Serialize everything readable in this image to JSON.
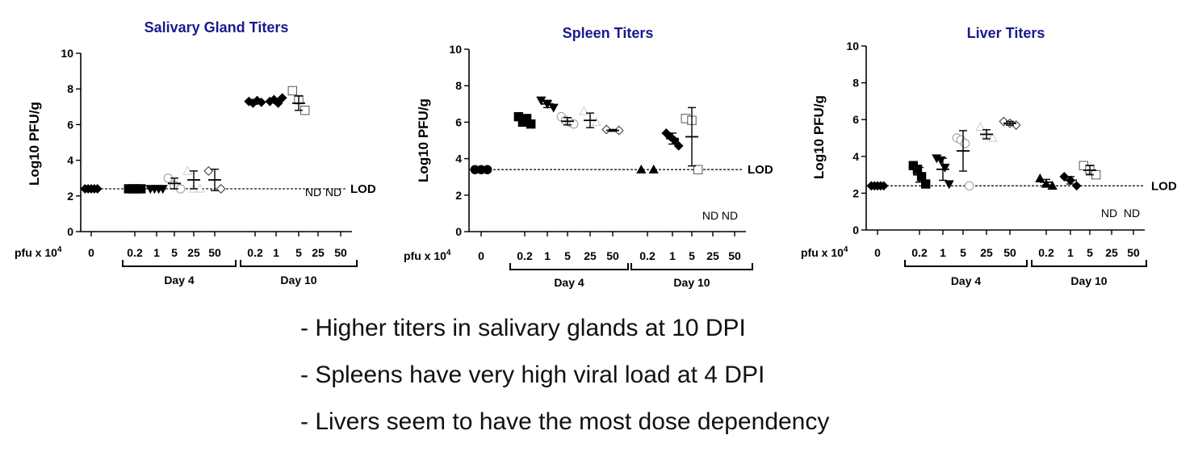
{
  "x_prefix": "pfu x 10",
  "x_prefix_exp": "4",
  "chart_data": [
    {
      "type": "scatter",
      "title": "Salivary Gland Titers",
      "ylabel": "Log10 PFU/g",
      "ylim": [
        0,
        10
      ],
      "yticks": [
        0,
        2,
        4,
        6,
        8,
        10
      ],
      "lod_value": 2.4,
      "lod_label": "LOD",
      "categories": [
        "0",
        "0.2",
        "1",
        "5",
        "25",
        "50",
        "0.2",
        "1",
        "5",
        "25",
        "50"
      ],
      "groups": [
        {
          "label": "Day 4",
          "from": 1,
          "to": 5
        },
        {
          "label": "Day 10",
          "from": 6,
          "to": 10
        }
      ],
      "not_detected": [
        {
          "category_index": 9,
          "text": "ND"
        },
        {
          "category_index": 10,
          "text": "ND"
        }
      ],
      "series": [
        {
          "category_index": 0,
          "marker": "diamond",
          "fill": "#000000",
          "values": [
            2.4,
            2.4,
            2.4,
            2.4,
            2.4
          ]
        },
        {
          "category_index": 1,
          "marker": "square",
          "fill": "#000000",
          "values": [
            2.4,
            2.4,
            2.4,
            2.4
          ]
        },
        {
          "category_index": 2,
          "marker": "triangle-down",
          "fill": "#000000",
          "values": [
            2.4,
            2.4,
            2.4,
            2.4
          ]
        },
        {
          "category_index": 3,
          "marker": "circle",
          "fill": "none",
          "color": "#999999",
          "values": [
            3.0,
            2.6,
            2.4
          ],
          "mean": 2.7,
          "err": 0.3
        },
        {
          "category_index": 4,
          "marker": "triangle",
          "fill": "none",
          "color": "#cccccc",
          "values": [
            3.4,
            2.4,
            2.4
          ],
          "mean": 2.9,
          "err": 0.5
        },
        {
          "category_index": 5,
          "marker": "diamond-open",
          "fill": "none",
          "color": "#333333",
          "values": [
            3.4,
            2.4
          ],
          "mean": 2.9,
          "err": 0.6
        },
        {
          "category_index": 6,
          "marker": "diamond",
          "fill": "#000000",
          "values": [
            7.3,
            7.2,
            7.35,
            7.25
          ],
          "mean": 7.3,
          "err": 0.1
        },
        {
          "category_index": 7,
          "marker": "diamond",
          "fill": "#000000",
          "values": [
            7.3,
            7.4,
            7.2,
            7.5
          ],
          "mean": 7.35,
          "err": 0.1
        },
        {
          "category_index": 8,
          "marker": "square",
          "fill": "none",
          "color": "#555555",
          "values": [
            7.9,
            7.4,
            6.8
          ],
          "mean": 7.2,
          "err": 0.4
        }
      ]
    },
    {
      "type": "scatter",
      "title": "Spleen Titers",
      "ylabel": "Log10 PFU/g",
      "ylim": [
        0,
        10
      ],
      "yticks": [
        0,
        2,
        4,
        6,
        8,
        10
      ],
      "lod_value": 3.4,
      "lod_label": "LOD",
      "categories": [
        "0",
        "0.2",
        "1",
        "5",
        "25",
        "50",
        "0.2",
        "1",
        "5",
        "25",
        "50"
      ],
      "groups": [
        {
          "label": "Day 4",
          "from": 1,
          "to": 5
        },
        {
          "label": "Day 10",
          "from": 6,
          "to": 10
        }
      ],
      "not_detected": [
        {
          "category_index": 9,
          "text": "ND"
        },
        {
          "category_index": 10,
          "text": "ND"
        }
      ],
      "series": [
        {
          "category_index": 0,
          "marker": "circle",
          "fill": "#000000",
          "values": [
            3.4,
            3.4,
            3.4
          ]
        },
        {
          "category_index": 1,
          "marker": "square",
          "fill": "#000000",
          "values": [
            6.3,
            6.0,
            6.2,
            5.9
          ],
          "mean": 6.1,
          "err": 0.15
        },
        {
          "category_index": 2,
          "marker": "triangle-down",
          "fill": "#000000",
          "values": [
            7.2,
            7.0,
            6.8
          ],
          "mean": 7.0,
          "err": 0.2
        },
        {
          "category_index": 3,
          "marker": "circle",
          "fill": "none",
          "color": "#999999",
          "values": [
            6.3,
            6.1,
            6.0,
            5.9
          ],
          "mean": 6.05,
          "err": 0.2
        },
        {
          "category_index": 4,
          "marker": "triangle",
          "fill": "none",
          "color": "#cccccc",
          "values": [
            6.6,
            6.0
          ],
          "mean": 6.1,
          "err": 0.4
        },
        {
          "category_index": 5,
          "marker": "diamond-open",
          "fill": "none",
          "color": "#333333",
          "values": [
            5.6,
            5.55
          ],
          "mean": 5.55,
          "err": 0.05
        },
        {
          "category_index": 6,
          "marker": "triangle",
          "fill": "#000000",
          "values": [
            3.4,
            3.4
          ]
        },
        {
          "category_index": 7,
          "marker": "diamond",
          "fill": "#000000",
          "values": [
            5.4,
            5.2,
            5.0,
            4.7
          ],
          "mean": 5.1,
          "err": 0.3
        },
        {
          "category_index": 8,
          "marker": "square",
          "fill": "none",
          "color": "#555555",
          "values": [
            6.2,
            6.1,
            3.4
          ],
          "mean": 5.2,
          "err": 1.6
        }
      ]
    },
    {
      "type": "scatter",
      "title": "Liver Titers",
      "ylabel": "Log10 PFU/g",
      "ylim": [
        0,
        10
      ],
      "yticks": [
        0,
        2,
        4,
        6,
        8,
        10
      ],
      "lod_value": 2.4,
      "lod_label": "LOD",
      "categories": [
        "0",
        "0.2",
        "1",
        "5",
        "25",
        "50",
        "0.2",
        "1",
        "5",
        "25",
        "50"
      ],
      "groups": [
        {
          "label": "Day 4",
          "from": 1,
          "to": 5
        },
        {
          "label": "Day 10",
          "from": 6,
          "to": 10
        }
      ],
      "not_detected": [
        {
          "category_index": 9,
          "text": "ND"
        },
        {
          "category_index": 10,
          "text": "ND"
        }
      ],
      "series": [
        {
          "category_index": 0,
          "marker": "diamond",
          "fill": "#000000",
          "values": [
            2.4,
            2.4,
            2.4,
            2.4,
            2.4
          ]
        },
        {
          "category_index": 1,
          "marker": "square",
          "fill": "#000000",
          "values": [
            3.5,
            3.3,
            2.9,
            2.5
          ],
          "mean": 3.0,
          "err": 0.4
        },
        {
          "category_index": 2,
          "marker": "triangle-down",
          "fill": "#000000",
          "values": [
            3.9,
            3.8,
            3.4,
            2.5
          ],
          "mean": 3.3,
          "err": 0.6
        },
        {
          "category_index": 3,
          "marker": "circle",
          "fill": "none",
          "color": "#999999",
          "values": [
            5.0,
            4.9,
            4.7,
            2.4
          ],
          "mean": 4.3,
          "err": 1.1
        },
        {
          "category_index": 4,
          "marker": "triangle",
          "fill": "none",
          "color": "#cccccc",
          "values": [
            5.6,
            5.2,
            5.0
          ],
          "mean": 5.2,
          "err": 0.25
        },
        {
          "category_index": 5,
          "marker": "diamond-open",
          "fill": "none",
          "color": "#333333",
          "values": [
            5.9,
            5.8,
            5.7
          ],
          "mean": 5.8,
          "err": 0.1
        },
        {
          "category_index": 6,
          "marker": "triangle",
          "fill": "#000000",
          "values": [
            2.8,
            2.5,
            2.4
          ],
          "mean": 2.6,
          "err": 0.15
        },
        {
          "category_index": 7,
          "marker": "diamond",
          "fill": "#000000",
          "values": [
            2.9,
            2.7,
            2.4
          ],
          "mean": 2.7,
          "err": 0.2
        },
        {
          "category_index": 8,
          "marker": "square",
          "fill": "none",
          "color": "#555555",
          "values": [
            3.5,
            3.3,
            3.0
          ],
          "mean": 3.25,
          "err": 0.25
        }
      ]
    }
  ],
  "bullets": [
    "- Higher titers in salivary glands at 10 DPI",
    "- Spleens have very high viral load at 4 DPI",
    "- Livers seem to have the most dose dependency"
  ]
}
